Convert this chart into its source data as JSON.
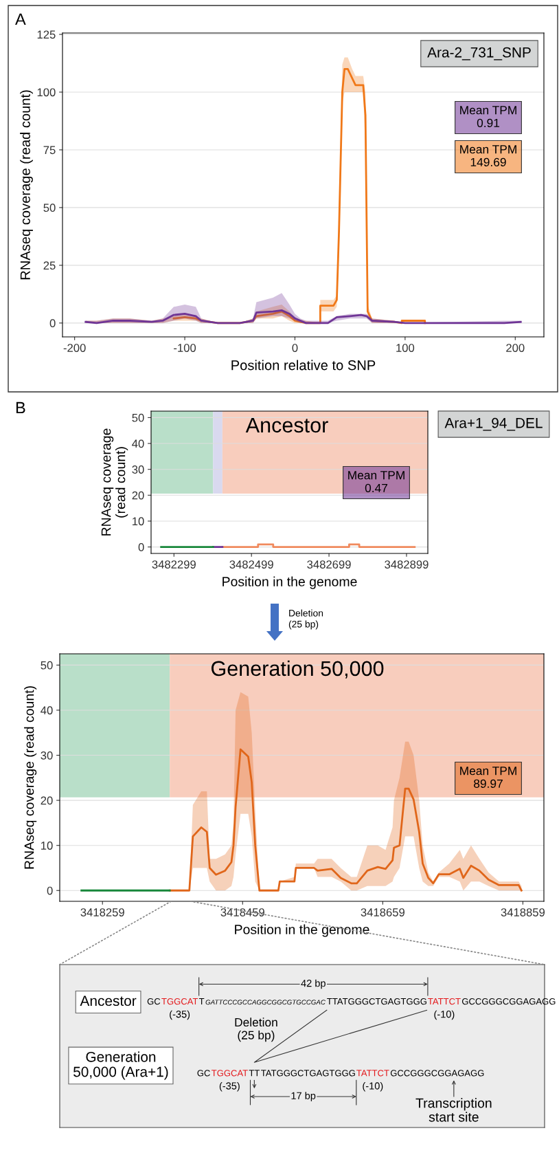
{
  "chart_data": [
    {
      "type": "line",
      "xlabel": "Position relative to SNP",
      "ylabel": "RNAseq coverage (read count)",
      "xlim": [
        -211,
        226
      ],
      "ylim": [
        -6,
        125.6
      ],
      "xticks": [
        -200,
        -100,
        0,
        100,
        200
      ],
      "yticks": [
        0,
        25,
        50,
        75,
        100,
        125
      ],
      "grid": "y",
      "legend": "top right",
      "annotations": [
        "A",
        "Ara-2_731_SNP"
      ],
      "series": [
        {
          "name": "Mean TPM\n0.91",
          "color": "#6f3596",
          "x": [
            -190,
            -180,
            -165,
            -150,
            -130,
            -120,
            -110,
            -100,
            -90,
            -85,
            -70,
            -50,
            -38,
            -35,
            -20,
            -12,
            -5,
            0,
            5,
            10,
            30,
            38,
            50,
            60,
            65,
            70,
            90,
            100,
            190,
            205
          ],
          "values": [
            0.5,
            0,
            1,
            1,
            0.5,
            1,
            3.5,
            4,
            3,
            1,
            0,
            0,
            1,
            4.5,
            5,
            5.5,
            4,
            2,
            1,
            0,
            0,
            2.5,
            3,
            3.5,
            3,
            1,
            0.5,
            0,
            0,
            0.5
          ],
          "lower": [
            0,
            0,
            0,
            0,
            0,
            0,
            1,
            2,
            1,
            0,
            0,
            0,
            0,
            2,
            3,
            3,
            2,
            1,
            0,
            0,
            0,
            1,
            2,
            2,
            2,
            0,
            0,
            0,
            0,
            0
          ],
          "upper": [
            1,
            1,
            2,
            2,
            1,
            2,
            7,
            8,
            7,
            2,
            0,
            0,
            2,
            9,
            11,
            13,
            8,
            4,
            2,
            1,
            1,
            3,
            4,
            4,
            4,
            2,
            1,
            0,
            1,
            1
          ]
        },
        {
          "name": "Mean TPM\n149.69",
          "color": "#f07818",
          "x": [
            -190,
            -180,
            -165,
            -150,
            -130,
            -120,
            -110,
            -100,
            -90,
            -85,
            -70,
            -50,
            -38,
            -35,
            -20,
            -12,
            -5,
            0,
            10,
            23,
            23,
            35,
            38,
            40,
            43,
            45,
            48,
            52,
            55,
            62,
            64,
            66,
            70,
            90,
            97,
            97,
            118,
            118
          ],
          "values": [
            null,
            null,
            null,
            null,
            null,
            null,
            2,
            2.5,
            2,
            1,
            0,
            0,
            1,
            3,
            4,
            5,
            3,
            1,
            0,
            0,
            7.5,
            7.5,
            10,
            40,
            100,
            110,
            110,
            106,
            103,
            103,
            90,
            5,
            1,
            0.5,
            0,
            1,
            1,
            0
          ],
          "lower": [
            0,
            0,
            0,
            0,
            0,
            0,
            1,
            1,
            1,
            0,
            0,
            0,
            0,
            2,
            2,
            3,
            1,
            0,
            0,
            0,
            5,
            5,
            7,
            30,
            95,
            100,
            100,
            100,
            100,
            100,
            75,
            2,
            0,
            0,
            0,
            1,
            1,
            0
          ],
          "upper": [
            1,
            1,
            2,
            2,
            1,
            2,
            3,
            4,
            3,
            2,
            0,
            0,
            2,
            5,
            7,
            8,
            5,
            2,
            1,
            0,
            10,
            10,
            12,
            50,
            112,
            115,
            115,
            110,
            107,
            107,
            100,
            8,
            2,
            1,
            0,
            1,
            1,
            0
          ]
        }
      ]
    },
    {
      "type": "line",
      "title": "Ancestor",
      "xlabel": "Position in the genome",
      "ylabel": "RNAseq coverage\n(read count)",
      "xlim": [
        3482240,
        3482954
      ],
      "ylim": [
        -2.5,
        52.5
      ],
      "xticks": [
        3482299,
        3482499,
        3482699,
        3482899
      ],
      "yticks": [
        0,
        10,
        20,
        30,
        40,
        50
      ],
      "grid": "y",
      "legend": "right",
      "annotations": [
        "B",
        "Ara+1_94_DEL",
        "Deletion\n(25 bp)"
      ],
      "bands": [
        {
          "axis": "x",
          "from": 3482240,
          "to": 3482400,
          "color": "#b9dfc9"
        },
        {
          "axis": "x",
          "from": 3482400,
          "to": 3482424,
          "color": "#d9d9ef"
        },
        {
          "axis": "x",
          "from": 3482424,
          "to": 3482954,
          "color": "#f8cdbd"
        }
      ],
      "series": [
        {
          "color": "#17873a",
          "x": [
            3482266,
            3482400
          ],
          "values": [
            0,
            0
          ]
        },
        {
          "name": "Mean TPM\n0.47",
          "color": "#6f3596",
          "x": [
            3482400,
            3482424
          ],
          "values": [
            0,
            0
          ]
        },
        {
          "color": "#f08a5d",
          "x": [
            3482424,
            3482516,
            3482516,
            3482555,
            3482555,
            3482751,
            3482751,
            3482777,
            3482777,
            3482920
          ],
          "values": [
            0,
            0,
            1,
            1,
            0,
            0,
            1,
            1,
            0,
            0
          ]
        }
      ]
    },
    {
      "type": "line",
      "title": "Generation 50,000",
      "xlabel": "Position in the genome",
      "ylabel": "RNAseq coverage (read count)",
      "xlim": [
        3418198,
        3418889
      ],
      "ylim": [
        -2.4,
        52.5
      ],
      "xticks": [
        3418259,
        3418459,
        3418659,
        3418859
      ],
      "yticks": [
        0,
        10,
        20,
        30,
        40,
        50
      ],
      "grid": "y",
      "legend": "right",
      "bands": [
        {
          "axis": "x",
          "from": 3418198,
          "to": 3418355,
          "color": "#b9dfc9"
        },
        {
          "axis": "x",
          "from": 3418355,
          "to": 3418889,
          "color": "#f8cdbd"
        }
      ],
      "series": [
        {
          "color": "#17873a",
          "x": [
            3418229,
            3418355
          ],
          "values": [
            0,
            0
          ]
        },
        {
          "name": "Mean TPM\n89.97",
          "color": "#e0661a",
          "x": [
            3418355,
            3418383,
            3418388,
            3418400,
            3418408,
            3418412,
            3418421,
            3418434,
            3418443,
            3418446,
            3418449,
            3418456,
            3418467,
            3418472,
            3418477,
            3418483,
            3418510,
            3418512,
            3418533,
            3418535,
            3418561,
            3418566,
            3418586,
            3418599,
            3418614,
            3418622,
            3418637,
            3418652,
            3418663,
            3418673,
            3418675,
            3418683,
            3418691,
            3418696,
            3418703,
            3418711,
            3418716,
            3418724,
            3418731,
            3418739,
            3418754,
            3418769,
            3418774,
            3418785,
            3418797,
            3418810,
            3418825,
            3418853,
            3418857
          ],
          "values": [
            0,
            0,
            12,
            14,
            13,
            5,
            3.5,
            4.4,
            6.3,
            10,
            18.6,
            31.3,
            29.7,
            24,
            10,
            0,
            0,
            2,
            2,
            5,
            5,
            4.4,
            4.8,
            2.8,
            1.6,
            1.6,
            4.4,
            5.2,
            4.8,
            6.7,
            9.5,
            10,
            22.6,
            22.6,
            20.2,
            13,
            6,
            2.8,
            1.6,
            3.6,
            3.6,
            4.8,
            2.8,
            5.5,
            4.4,
            2.4,
            1.2,
            1.2,
            0
          ],
          "lower": [
            0,
            0,
            5,
            5,
            5,
            2,
            0,
            0,
            1,
            3,
            8,
            17,
            17,
            12,
            2,
            0,
            0,
            2,
            2,
            5,
            5,
            3,
            3,
            2,
            0,
            0,
            1,
            1,
            1,
            2,
            3,
            5,
            12,
            12,
            12,
            5,
            2,
            1,
            1,
            3,
            3,
            2,
            0,
            2,
            2,
            1,
            0,
            0,
            0
          ],
          "upper": [
            0,
            0,
            19,
            22,
            22,
            7,
            7,
            8,
            10,
            15,
            40,
            44,
            43,
            35,
            18,
            0,
            0,
            2,
            3,
            6,
            6,
            7,
            7,
            5,
            3,
            3,
            10,
            10,
            9,
            14,
            20,
            25,
            33,
            33,
            30,
            20,
            10,
            4,
            2,
            4,
            6,
            9,
            7,
            10,
            7,
            4,
            2,
            2,
            1
          ]
        }
      ]
    },
    {
      "type": "other",
      "annotations": [
        "Ancestor",
        "GC",
        "TGGCAT",
        "T",
        "GATTCCCGCCAGGCGGCGTGCCGAC",
        "TTATGGGCTGAGTGGG",
        "TATTCT",
        "GCCGGGCGGAGAGG",
        "(-35)",
        "(-10)",
        "42 bp",
        "Deletion\n(25 bp)",
        "Generation\n50,000 (Ara+1)",
        "GC",
        "TGGCAT",
        "TT",
        "TATGGGCTGAGTGGG",
        "TATTCT",
        "GCCGGGCGGAGAGG",
        "(-35)",
        "(-10)",
        "17 bp",
        "Transcription\nstart site"
      ]
    }
  ]
}
